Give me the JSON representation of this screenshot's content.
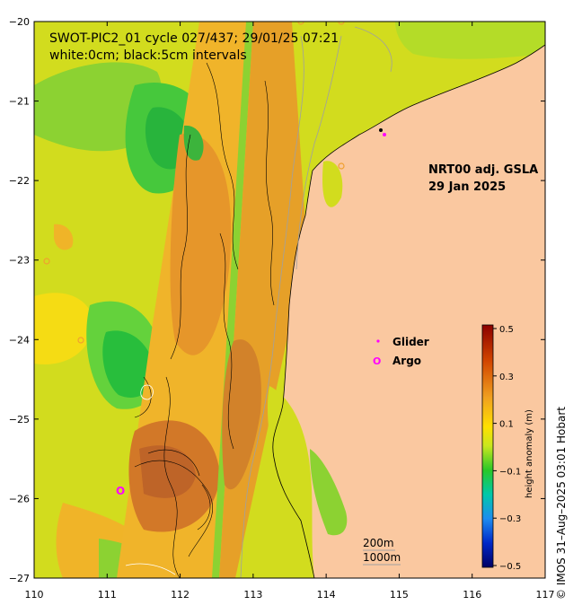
{
  "header": {
    "title_line1": "SWOT-PIC2_01 cycle 027/437; 29/01/25 07:21",
    "title_line2": "white:0cm; black:5cm intervals"
  },
  "product": {
    "name": "NRT00 adj. GSLA",
    "date": "29 Jan 2025"
  },
  "legend": {
    "glider_label": "Glider",
    "argo_label": "Argo",
    "argo_symbol": "O",
    "glider_color": "#ff00ff",
    "argo_color": "#ff00ff"
  },
  "depth_labels": [
    "200m",
    "1000m"
  ],
  "colorbar": {
    "title": "height anomaly (m)",
    "ticks": [
      "0.5",
      "0.3",
      "0.1",
      "−0.1",
      "−0.3",
      "−0.5"
    ],
    "min": -0.5,
    "max": 0.5
  },
  "axes": {
    "x_ticks": [
      "110",
      "111",
      "112",
      "113",
      "114",
      "115",
      "116",
      "117"
    ],
    "y_ticks": [
      "−20",
      "−21",
      "−22",
      "−23",
      "−24",
      "−25",
      "−26",
      "−27"
    ],
    "lon_range": [
      110,
      117
    ],
    "lat_range": [
      -27,
      -20
    ]
  },
  "credit": "©  IMOS 31–Aug–2025 03:01 Hobart",
  "colors": {
    "land": "#fac8a0",
    "ocean_base": "#d2dc1e",
    "swath_base": "#e8a828"
  }
}
